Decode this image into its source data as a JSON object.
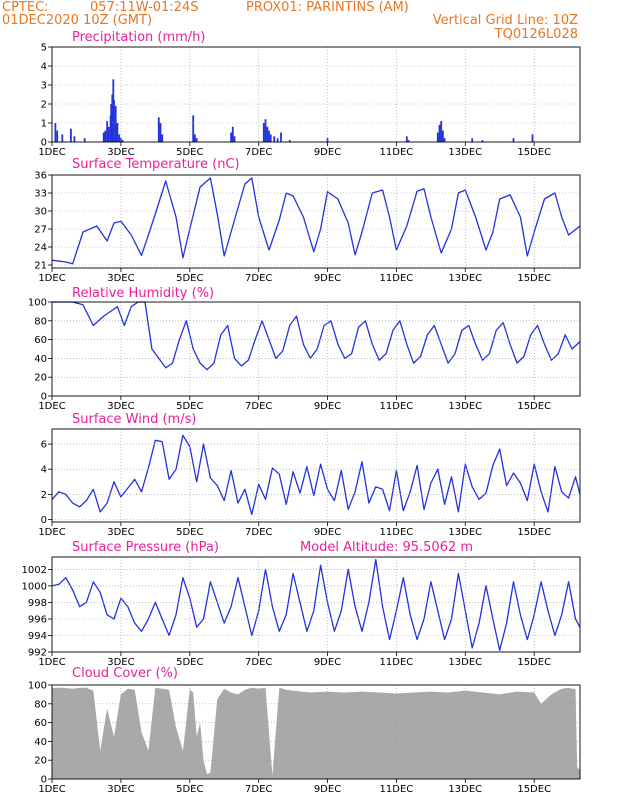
{
  "header": {
    "source": "CPTEC:",
    "location": "057:11W-01:24S",
    "station": "PROX01: PARINTINS (AM)",
    "init_time": "01DEC2020 10Z (GMT)",
    "grid_note": "Vertical Grid Line: 10Z",
    "code": "TQ0126L028"
  },
  "colors": {
    "header": "#e87722",
    "titles": "#e8209a",
    "series": "#2233dd",
    "cloud": "#a9a9a9",
    "grid": "#9a9a9a"
  },
  "chart_data": [
    {
      "type": "bar",
      "title": "Precipitation (mm/h)",
      "x_tick_labels": [
        "1DEC",
        "3DEC",
        "5DEC",
        "7DEC",
        "9DEC",
        "11DEC",
        "13DEC",
        "15DEC"
      ],
      "y_ticks": [
        0,
        1,
        2,
        3,
        4,
        5
      ],
      "ylim": [
        0,
        5
      ],
      "xlim_days": [
        0,
        15.33
      ],
      "x_days": [
        0.1,
        0.15,
        0.3,
        0.55,
        0.65,
        0.95,
        1.5,
        1.55,
        1.6,
        1.65,
        1.7,
        1.72,
        1.75,
        1.78,
        1.8,
        1.85,
        1.9,
        1.95,
        2.0,
        2.05,
        3.1,
        3.15,
        3.2,
        4.1,
        4.15,
        4.2,
        5.2,
        5.25,
        5.3,
        6.15,
        6.2,
        6.25,
        6.3,
        6.35,
        6.45,
        6.55,
        6.65,
        6.9,
        8.0,
        10.3,
        10.35,
        11.2,
        11.25,
        11.3,
        11.35,
        11.4,
        12.2,
        12.5,
        13.4,
        13.95
      ],
      "values": [
        1.0,
        0.6,
        0.4,
        0.7,
        0.3,
        0.2,
        0.5,
        0.6,
        1.1,
        0.8,
        1.4,
        2.0,
        2.5,
        3.3,
        2.2,
        1.9,
        1.0,
        0.4,
        0.2,
        0.1,
        1.3,
        1.0,
        0.4,
        1.4,
        0.4,
        0.2,
        0.5,
        0.8,
        0.3,
        1.0,
        1.2,
        0.8,
        0.6,
        0.4,
        0.3,
        0.2,
        0.5,
        0.1,
        0.2,
        0.3,
        0.1,
        0.5,
        0.9,
        1.1,
        0.6,
        0.2,
        0.2,
        0.1,
        0.2,
        0.4
      ]
    },
    {
      "type": "line",
      "title": "Surface Temperature (nC)",
      "x_tick_labels": [
        "1DEC",
        "3DEC",
        "5DEC",
        "7DEC",
        "9DEC",
        "11DEC",
        "13DEC",
        "15DEC"
      ],
      "y_ticks": [
        21,
        24,
        27,
        30,
        33,
        36
      ],
      "ylim": [
        20.5,
        36
      ],
      "xlim_days": [
        0,
        15.33
      ],
      "x_days": [
        0.0,
        0.4,
        0.6,
        0.9,
        1.3,
        1.6,
        1.8,
        2.0,
        2.3,
        2.6,
        2.8,
        3.0,
        3.3,
        3.6,
        3.8,
        4.0,
        4.3,
        4.6,
        4.8,
        5.0,
        5.3,
        5.6,
        5.8,
        6.0,
        6.3,
        6.6,
        6.8,
        7.0,
        7.3,
        7.6,
        7.8,
        8.0,
        8.3,
        8.6,
        8.8,
        9.0,
        9.3,
        9.6,
        9.8,
        10.0,
        10.3,
        10.6,
        10.8,
        11.0,
        11.3,
        11.6,
        11.8,
        12.0,
        12.3,
        12.6,
        12.8,
        13.0,
        13.3,
        13.6,
        13.8,
        14.0,
        14.3,
        14.6,
        14.8,
        15.0,
        15.33
      ],
      "values": [
        21.8,
        21.5,
        21.2,
        26.5,
        27.5,
        25.0,
        28.0,
        28.3,
        26.0,
        22.6,
        26.0,
        29.5,
        35.0,
        29.0,
        22.2,
        27.0,
        34.0,
        35.5,
        29.5,
        22.5,
        28.5,
        34.5,
        35.5,
        29.0,
        23.5,
        28.5,
        33.0,
        32.5,
        29.0,
        23.2,
        27.0,
        33.2,
        32.0,
        28.0,
        22.7,
        26.5,
        33.0,
        33.5,
        29.0,
        23.5,
        27.5,
        33.3,
        33.7,
        29.0,
        23.0,
        27.0,
        33.0,
        33.5,
        29.0,
        23.5,
        26.5,
        32.0,
        32.7,
        29.0,
        22.5,
        26.5,
        32.0,
        33.0,
        29.0,
        26.0,
        27.5
      ]
    },
    {
      "type": "line",
      "title": "Relative Humidity (%)",
      "x_tick_labels": [
        "1DEC",
        "3DEC",
        "5DEC",
        "7DEC",
        "9DEC",
        "11DEC",
        "13DEC",
        "15DEC"
      ],
      "y_ticks": [
        0,
        20,
        40,
        60,
        80,
        100
      ],
      "ylim": [
        0,
        100
      ],
      "xlim_days": [
        0,
        15.33
      ],
      "x_days": [
        0.0,
        0.2,
        0.4,
        0.6,
        0.9,
        1.2,
        1.5,
        1.7,
        1.9,
        2.1,
        2.3,
        2.5,
        2.7,
        2.9,
        3.1,
        3.3,
        3.5,
        3.7,
        3.9,
        4.1,
        4.3,
        4.5,
        4.7,
        4.9,
        5.1,
        5.3,
        5.5,
        5.7,
        5.9,
        6.1,
        6.3,
        6.5,
        6.7,
        6.9,
        7.1,
        7.3,
        7.5,
        7.7,
        7.9,
        8.1,
        8.3,
        8.5,
        8.7,
        8.9,
        9.1,
        9.3,
        9.5,
        9.7,
        9.9,
        10.1,
        10.3,
        10.5,
        10.7,
        10.9,
        11.1,
        11.3,
        11.5,
        11.7,
        11.9,
        12.1,
        12.3,
        12.5,
        12.7,
        12.9,
        13.1,
        13.3,
        13.5,
        13.7,
        13.9,
        14.1,
        14.3,
        14.5,
        14.7,
        14.9,
        15.1,
        15.33
      ],
      "values": [
        100,
        100,
        100,
        100,
        97,
        75,
        85,
        90,
        95,
        75,
        95,
        100,
        100,
        50,
        40,
        30,
        35,
        60,
        80,
        50,
        35,
        28,
        35,
        65,
        75,
        40,
        32,
        38,
        60,
        80,
        60,
        40,
        48,
        75,
        85,
        55,
        40,
        50,
        75,
        80,
        55,
        40,
        45,
        73,
        80,
        55,
        38,
        45,
        70,
        80,
        55,
        35,
        42,
        65,
        75,
        55,
        35,
        45,
        70,
        75,
        55,
        38,
        45,
        70,
        78,
        55,
        35,
        42,
        65,
        75,
        55,
        38,
        45,
        65,
        50,
        58
      ]
    },
    {
      "type": "line",
      "title": "Surface Wind (m/s)",
      "x_tick_labels": [
        "1DEC",
        "3DEC",
        "5DEC",
        "7DEC",
        "9DEC",
        "11DEC",
        "13DEC",
        "15DEC"
      ],
      "y_ticks": [
        0,
        2,
        4,
        6
      ],
      "ylim": [
        -0.2,
        7.2
      ],
      "xlim_days": [
        0,
        15.33
      ],
      "x_days": [
        0.0,
        0.2,
        0.4,
        0.6,
        0.8,
        1.0,
        1.2,
        1.4,
        1.6,
        1.8,
        2.0,
        2.2,
        2.4,
        2.6,
        2.8,
        3.0,
        3.2,
        3.4,
        3.6,
        3.8,
        4.0,
        4.2,
        4.4,
        4.6,
        4.8,
        5.0,
        5.2,
        5.4,
        5.6,
        5.8,
        6.0,
        6.2,
        6.4,
        6.6,
        6.8,
        7.0,
        7.2,
        7.4,
        7.6,
        7.8,
        8.0,
        8.2,
        8.4,
        8.6,
        8.8,
        9.0,
        9.2,
        9.4,
        9.6,
        9.8,
        10.0,
        10.2,
        10.4,
        10.6,
        10.8,
        11.0,
        11.2,
        11.4,
        11.6,
        11.8,
        12.0,
        12.2,
        12.4,
        12.6,
        12.8,
        13.0,
        13.2,
        13.4,
        13.6,
        13.8,
        14.0,
        14.2,
        14.4,
        14.6,
        14.8,
        15.0,
        15.2,
        15.33
      ],
      "values": [
        1.6,
        2.2,
        2.0,
        1.3,
        1.0,
        1.5,
        2.4,
        0.6,
        1.3,
        3.0,
        1.8,
        2.5,
        3.2,
        2.2,
        4.1,
        6.3,
        6.2,
        3.2,
        4.0,
        6.7,
        5.8,
        3.0,
        6.0,
        3.3,
        2.7,
        1.5,
        3.9,
        1.3,
        2.4,
        0.4,
        2.8,
        1.6,
        4.1,
        3.6,
        1.2,
        3.8,
        2.1,
        4.2,
        1.9,
        4.4,
        2.4,
        1.5,
        3.9,
        0.8,
        2.2,
        4.6,
        1.3,
        2.6,
        2.4,
        0.7,
        3.9,
        0.7,
        2.2,
        4.3,
        0.8,
        2.9,
        4.0,
        1.2,
        3.4,
        0.6,
        4.4,
        2.6,
        1.6,
        2.1,
        4.3,
        5.6,
        2.7,
        3.7,
        2.9,
        1.5,
        4.4,
        2.2,
        0.6,
        4.2,
        2.2,
        1.7,
        3.4,
        2.0
      ]
    },
    {
      "type": "line",
      "title": "Surface Pressure (hPa)",
      "annotation": "Model Altitude: 95.5062 m",
      "x_tick_labels": [
        "1DEC",
        "3DEC",
        "5DEC",
        "7DEC",
        "9DEC",
        "11DEC",
        "13DEC",
        "15DEC"
      ],
      "y_ticks": [
        992,
        994,
        996,
        998,
        1000,
        1002
      ],
      "ylim": [
        992,
        1003.5
      ],
      "xlim_days": [
        0,
        15.33
      ],
      "x_days": [
        0.0,
        0.2,
        0.4,
        0.6,
        0.8,
        1.0,
        1.2,
        1.4,
        1.6,
        1.8,
        2.0,
        2.2,
        2.4,
        2.6,
        2.8,
        3.0,
        3.2,
        3.4,
        3.6,
        3.8,
        4.0,
        4.2,
        4.4,
        4.6,
        4.8,
        5.0,
        5.2,
        5.4,
        5.6,
        5.8,
        6.0,
        6.2,
        6.4,
        6.6,
        6.8,
        7.0,
        7.2,
        7.4,
        7.6,
        7.8,
        8.0,
        8.2,
        8.4,
        8.6,
        8.8,
        9.0,
        9.2,
        9.4,
        9.6,
        9.8,
        10.0,
        10.2,
        10.4,
        10.6,
        10.8,
        11.0,
        11.2,
        11.4,
        11.6,
        11.8,
        12.0,
        12.2,
        12.4,
        12.6,
        12.8,
        13.0,
        13.2,
        13.4,
        13.6,
        13.8,
        14.0,
        14.2,
        14.4,
        14.6,
        14.8,
        15.0,
        15.2,
        15.33
      ],
      "values": [
        1000.0,
        1000.2,
        1001.0,
        999.5,
        997.5,
        998.0,
        1000.5,
        999.2,
        996.5,
        996.0,
        998.5,
        997.5,
        995.5,
        994.5,
        996.0,
        998.0,
        996.0,
        994.0,
        996.5,
        1001.0,
        998.5,
        995.0,
        996.0,
        1000.5,
        998.0,
        995.5,
        997.5,
        1001.0,
        997.5,
        994.0,
        997.0,
        1002.0,
        997.5,
        994.5,
        996.5,
        1001.5,
        998.0,
        994.5,
        997.0,
        1002.5,
        998.0,
        994.5,
        997.0,
        1002.0,
        997.5,
        994.5,
        998.0,
        1003.2,
        997.5,
        993.5,
        997.0,
        1001.0,
        996.5,
        993.5,
        996.0,
        1000.5,
        997.0,
        993.5,
        996.0,
        1001.5,
        997.0,
        992.5,
        995.5,
        1000.0,
        996.0,
        992.2,
        995.5,
        1000.5,
        996.5,
        993.5,
        996.5,
        1000.5,
        997.0,
        994.0,
        996.5,
        1000.5,
        996.0,
        995.0
      ]
    },
    {
      "type": "area",
      "title": "Cloud Cover (%)",
      "x_tick_labels": [
        "1DEC",
        "3DEC",
        "5DEC",
        "7DEC",
        "9DEC",
        "11DEC",
        "13DEC",
        "15DEC"
      ],
      "y_ticks": [
        0,
        20,
        40,
        60,
        80,
        100
      ],
      "ylim": [
        0,
        100
      ],
      "xlim_days": [
        0,
        15.33
      ],
      "x_days": [
        0.0,
        0.3,
        0.6,
        0.8,
        1.0,
        1.2,
        1.4,
        1.6,
        1.8,
        2.0,
        2.2,
        2.4,
        2.6,
        2.8,
        3.0,
        3.2,
        3.4,
        3.6,
        3.8,
        4.0,
        4.1,
        4.2,
        4.3,
        4.4,
        4.5,
        4.6,
        4.8,
        5.0,
        5.2,
        5.4,
        5.6,
        5.8,
        6.0,
        6.2,
        6.4,
        6.6,
        6.8,
        7.0,
        7.5,
        8.0,
        8.5,
        9.0,
        9.5,
        10.0,
        10.5,
        11.0,
        11.5,
        12.0,
        12.5,
        13.0,
        13.5,
        14.0,
        14.2,
        14.5,
        14.8,
        15.0,
        15.1,
        15.2,
        15.25,
        15.33
      ],
      "values": [
        97,
        97,
        96,
        97,
        97,
        94,
        30,
        75,
        45,
        90,
        96,
        95,
        50,
        30,
        97,
        96,
        95,
        55,
        30,
        95,
        92,
        45,
        60,
        20,
        5,
        7,
        85,
        96,
        92,
        90,
        95,
        97,
        96,
        97,
        4,
        97,
        95,
        94,
        92,
        93,
        92,
        93,
        92,
        91,
        92,
        93,
        92,
        94,
        92,
        90,
        93,
        92,
        80,
        90,
        96,
        97,
        96,
        96,
        12,
        10
      ]
    }
  ]
}
